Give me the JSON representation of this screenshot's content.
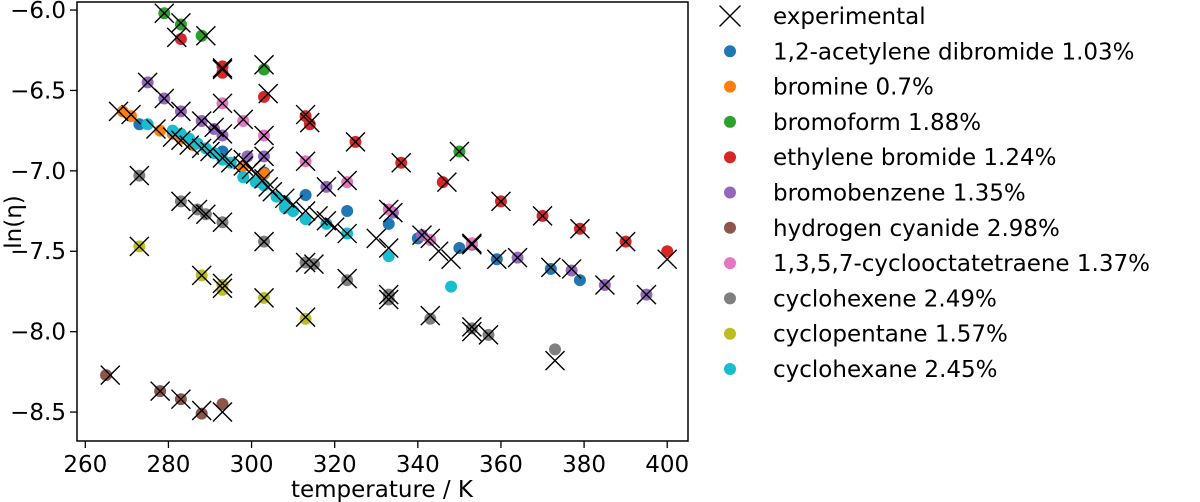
{
  "chart_data": {
    "type": "scatter",
    "xlabel": "temperature / K",
    "ylabel": "ln(η)",
    "xlim": [
      258,
      405
    ],
    "ylim": [
      -8.68,
      -5.95
    ],
    "xticks": [
      260,
      280,
      300,
      320,
      340,
      360,
      380,
      400
    ],
    "yticks": [
      -6.0,
      -6.5,
      -7.0,
      -7.5,
      -8.0,
      -8.5
    ],
    "xtick_labels": [
      "260",
      "280",
      "300",
      "320",
      "340",
      "360",
      "380",
      "400"
    ],
    "ytick_labels": [
      "−6.0",
      "−6.5",
      "−7.0",
      "−7.5",
      "−8.0",
      "−8.5"
    ],
    "grid": false,
    "legend_position": "outside-right",
    "experimental_label": "experimental",
    "experimental": [
      [
        279,
        -6.02
      ],
      [
        283,
        -6.08
      ],
      [
        282,
        -6.17
      ],
      [
        289,
        -6.16
      ],
      [
        293,
        -6.37
      ],
      [
        293,
        -6.36
      ],
      [
        303,
        -6.34
      ],
      [
        304,
        -6.52
      ],
      [
        313,
        -6.65
      ],
      [
        314,
        -6.7
      ],
      [
        325,
        -6.82
      ],
      [
        336,
        -6.95
      ],
      [
        347,
        -7.07
      ],
      [
        350,
        -6.88
      ],
      [
        360,
        -7.19
      ],
      [
        370,
        -7.28
      ],
      [
        379,
        -7.36
      ],
      [
        390,
        -7.44
      ],
      [
        400,
        -7.55
      ],
      [
        275,
        -6.45
      ],
      [
        279,
        -6.55
      ],
      [
        283,
        -6.63
      ],
      [
        288,
        -6.69
      ],
      [
        291,
        -6.73
      ],
      [
        293,
        -6.77
      ],
      [
        298,
        -6.93
      ],
      [
        303,
        -6.91
      ],
      [
        318,
        -7.1
      ],
      [
        334,
        -7.26
      ],
      [
        341,
        -7.4
      ],
      [
        353,
        -7.46
      ],
      [
        359,
        -7.55
      ],
      [
        364,
        -7.54
      ],
      [
        372,
        -7.6
      ],
      [
        377,
        -7.61
      ],
      [
        385,
        -7.71
      ],
      [
        395,
        -7.77
      ],
      [
        293,
        -6.58
      ],
      [
        298,
        -6.68
      ],
      [
        303,
        -6.78
      ],
      [
        313,
        -6.94
      ],
      [
        323,
        -7.06
      ],
      [
        333,
        -7.24
      ],
      [
        343,
        -7.42
      ],
      [
        353,
        -7.45
      ],
      [
        273,
        -7.03
      ],
      [
        283,
        -7.19
      ],
      [
        287,
        -7.24
      ],
      [
        289,
        -7.27
      ],
      [
        293,
        -7.32
      ],
      [
        303,
        -7.44
      ],
      [
        313,
        -7.57
      ],
      [
        315,
        -7.58
      ],
      [
        323,
        -7.67
      ],
      [
        333,
        -7.77
      ],
      [
        333,
        -7.8
      ],
      [
        343,
        -7.9
      ],
      [
        353,
        -7.97
      ],
      [
        353,
        -8.0
      ],
      [
        357,
        -8.02
      ],
      [
        373,
        -8.18
      ],
      [
        273,
        -7.47
      ],
      [
        288,
        -7.65
      ],
      [
        293,
        -7.7
      ],
      [
        293,
        -7.73
      ],
      [
        303,
        -7.79
      ],
      [
        313,
        -7.91
      ],
      [
        266,
        -8.27
      ],
      [
        278,
        -8.37
      ],
      [
        283,
        -8.42
      ],
      [
        288,
        -8.49
      ],
      [
        293,
        -8.5
      ],
      [
        268,
        -6.63
      ],
      [
        271,
        -6.65
      ],
      [
        277,
        -6.74
      ],
      [
        281,
        -6.79
      ],
      [
        283,
        -6.81
      ],
      [
        285,
        -6.84
      ],
      [
        288,
        -6.86
      ],
      [
        290,
        -6.88
      ],
      [
        293,
        -6.92
      ],
      [
        295,
        -6.95
      ],
      [
        298,
        -6.97
      ],
      [
        300,
        -6.99
      ],
      [
        301,
        -7.02
      ],
      [
        303,
        -7.05
      ],
      [
        304,
        -7.1
      ],
      [
        305,
        -7.13
      ],
      [
        308,
        -7.17
      ],
      [
        310,
        -7.21
      ],
      [
        313,
        -7.25
      ],
      [
        316,
        -7.28
      ],
      [
        318,
        -7.31
      ],
      [
        320,
        -7.35
      ],
      [
        323,
        -7.39
      ],
      [
        330,
        -7.42
      ],
      [
        333,
        -7.48
      ],
      [
        345,
        -7.5
      ],
      [
        348,
        -7.55
      ]
    ],
    "series": [
      {
        "name": "1,2-acetylene dibromide 1.03%",
        "color": "#1f77b4",
        "points": [
          [
            273,
            -6.71
          ],
          [
            283,
            -6.78
          ],
          [
            293,
            -6.88
          ],
          [
            303,
            -7.01
          ],
          [
            313,
            -7.15
          ],
          [
            323,
            -7.25
          ],
          [
            333,
            -7.33
          ],
          [
            340,
            -7.42
          ],
          [
            350,
            -7.48
          ],
          [
            359,
            -7.55
          ],
          [
            372,
            -7.61
          ],
          [
            379,
            -7.68
          ]
        ]
      },
      {
        "name": "bromine 0.7%",
        "color": "#ff7f0e",
        "points": [
          [
            269,
            -6.63
          ],
          [
            271,
            -6.66
          ],
          [
            278,
            -6.75
          ],
          [
            281,
            -6.77
          ],
          [
            283,
            -6.8
          ],
          [
            286,
            -6.84
          ],
          [
            298,
            -6.97
          ],
          [
            303,
            -7.02
          ]
        ]
      },
      {
        "name": "bromoform 1.88%",
        "color": "#2ca02c",
        "points": [
          [
            279,
            -6.02
          ],
          [
            283,
            -6.09
          ],
          [
            288,
            -6.16
          ],
          [
            303,
            -6.37
          ],
          [
            350,
            -6.88
          ]
        ]
      },
      {
        "name": "ethylene bromide 1.24%",
        "color": "#d62728",
        "points": [
          [
            283,
            -6.18
          ],
          [
            293,
            -6.35
          ],
          [
            293,
            -6.39
          ],
          [
            303,
            -6.54
          ],
          [
            313,
            -6.66
          ],
          [
            314,
            -6.71
          ],
          [
            325,
            -6.82
          ],
          [
            336,
            -6.95
          ],
          [
            346,
            -7.07
          ],
          [
            360,
            -7.19
          ],
          [
            370,
            -7.28
          ],
          [
            379,
            -7.36
          ],
          [
            390,
            -7.44
          ],
          [
            400,
            -7.5
          ]
        ]
      },
      {
        "name": "bromobenzene 1.35%",
        "color": "#9467bd",
        "points": [
          [
            275,
            -6.45
          ],
          [
            279,
            -6.55
          ],
          [
            283,
            -6.63
          ],
          [
            288,
            -6.69
          ],
          [
            291,
            -6.74
          ],
          [
            293,
            -6.78
          ],
          [
            299,
            -6.91
          ],
          [
            303,
            -6.91
          ],
          [
            318,
            -7.1
          ],
          [
            334,
            -7.26
          ],
          [
            341,
            -7.4
          ],
          [
            353,
            -7.46
          ],
          [
            364,
            -7.54
          ],
          [
            377,
            -7.62
          ],
          [
            385,
            -7.71
          ],
          [
            395,
            -7.77
          ]
        ]
      },
      {
        "name": "hydrogen cyanide 2.98%",
        "color": "#8c564b",
        "points": [
          [
            265,
            -8.27
          ],
          [
            278,
            -8.37
          ],
          [
            283,
            -8.42
          ],
          [
            288,
            -8.51
          ],
          [
            293,
            -8.45
          ]
        ]
      },
      {
        "name": "1,3,5,7-cyclooctatetraene 1.37%",
        "color": "#e377c2",
        "points": [
          [
            293,
            -6.58
          ],
          [
            298,
            -6.69
          ],
          [
            303,
            -6.78
          ],
          [
            313,
            -6.94
          ],
          [
            323,
            -7.07
          ],
          [
            333,
            -7.24
          ],
          [
            343,
            -7.43
          ],
          [
            353,
            -7.45
          ]
        ]
      },
      {
        "name": "cyclohexene 2.49%",
        "color": "#7f7f7f",
        "points": [
          [
            273,
            -7.03
          ],
          [
            283,
            -7.19
          ],
          [
            287,
            -7.24
          ],
          [
            289,
            -7.27
          ],
          [
            293,
            -7.32
          ],
          [
            303,
            -7.44
          ],
          [
            313,
            -7.57
          ],
          [
            315,
            -7.58
          ],
          [
            323,
            -7.68
          ],
          [
            333,
            -7.77
          ],
          [
            333,
            -7.8
          ],
          [
            343,
            -7.92
          ],
          [
            353,
            -7.98
          ],
          [
            357,
            -8.02
          ],
          [
            373,
            -8.11
          ]
        ]
      },
      {
        "name": "cyclopentane 1.57%",
        "color": "#bcbd22",
        "points": [
          [
            273,
            -7.47
          ],
          [
            288,
            -7.65
          ],
          [
            293,
            -7.71
          ],
          [
            293,
            -7.74
          ],
          [
            303,
            -7.79
          ],
          [
            313,
            -7.92
          ]
        ]
      },
      {
        "name": "cyclohexane 2.45%",
        "color": "#17becf",
        "points": [
          [
            275,
            -6.71
          ],
          [
            281,
            -6.75
          ],
          [
            283,
            -6.77
          ],
          [
            285,
            -6.8
          ],
          [
            287,
            -6.83
          ],
          [
            289,
            -6.86
          ],
          [
            291,
            -6.89
          ],
          [
            293,
            -6.93
          ],
          [
            295,
            -6.95
          ],
          [
            298,
            -7.04
          ],
          [
            301,
            -7.07
          ],
          [
            303,
            -7.09
          ],
          [
            306,
            -7.16
          ],
          [
            308,
            -7.19
          ],
          [
            308,
            -7.23
          ],
          [
            310,
            -7.25
          ],
          [
            313,
            -7.3
          ],
          [
            318,
            -7.33
          ],
          [
            323,
            -7.39
          ],
          [
            333,
            -7.53
          ],
          [
            348,
            -7.72
          ]
        ]
      }
    ]
  }
}
